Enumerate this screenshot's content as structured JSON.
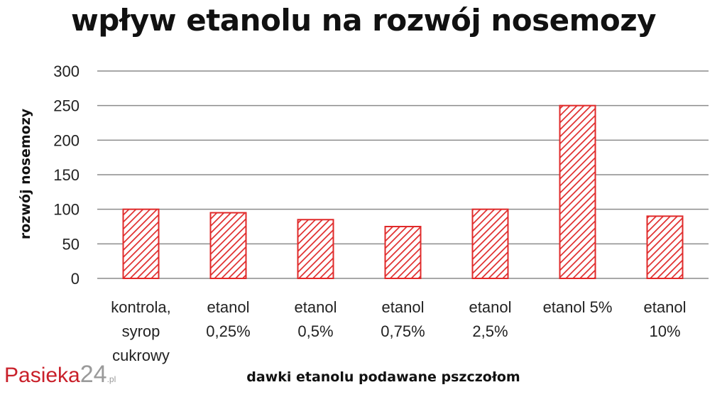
{
  "chart_data": {
    "type": "bar",
    "title": "wpływ etanolu na rozwój nosemozy",
    "xlabel": "dawki etanolu podawane pszczołom",
    "ylabel": "rozwój nosemozy",
    "ylim": [
      0,
      300
    ],
    "yticks": [
      0,
      50,
      100,
      150,
      200,
      250,
      300
    ],
    "grid": true,
    "categories": [
      [
        "kontrola,",
        "syrop",
        "cukrowy"
      ],
      [
        "etanol",
        "0,25%"
      ],
      [
        "etanol",
        "0,5%"
      ],
      [
        "etanol",
        "0,75%"
      ],
      [
        "etanol",
        "2,5%"
      ],
      [
        "etanol 5%"
      ],
      [
        "etanol",
        "10%"
      ]
    ],
    "values": [
      100,
      95,
      85,
      75,
      100,
      250,
      90
    ],
    "bar_color": "#e02a2a",
    "bar_pattern": "diagonal-hatch"
  },
  "watermark": {
    "brand": "Pasieka",
    "number": "24",
    "suffix": ".pl"
  }
}
